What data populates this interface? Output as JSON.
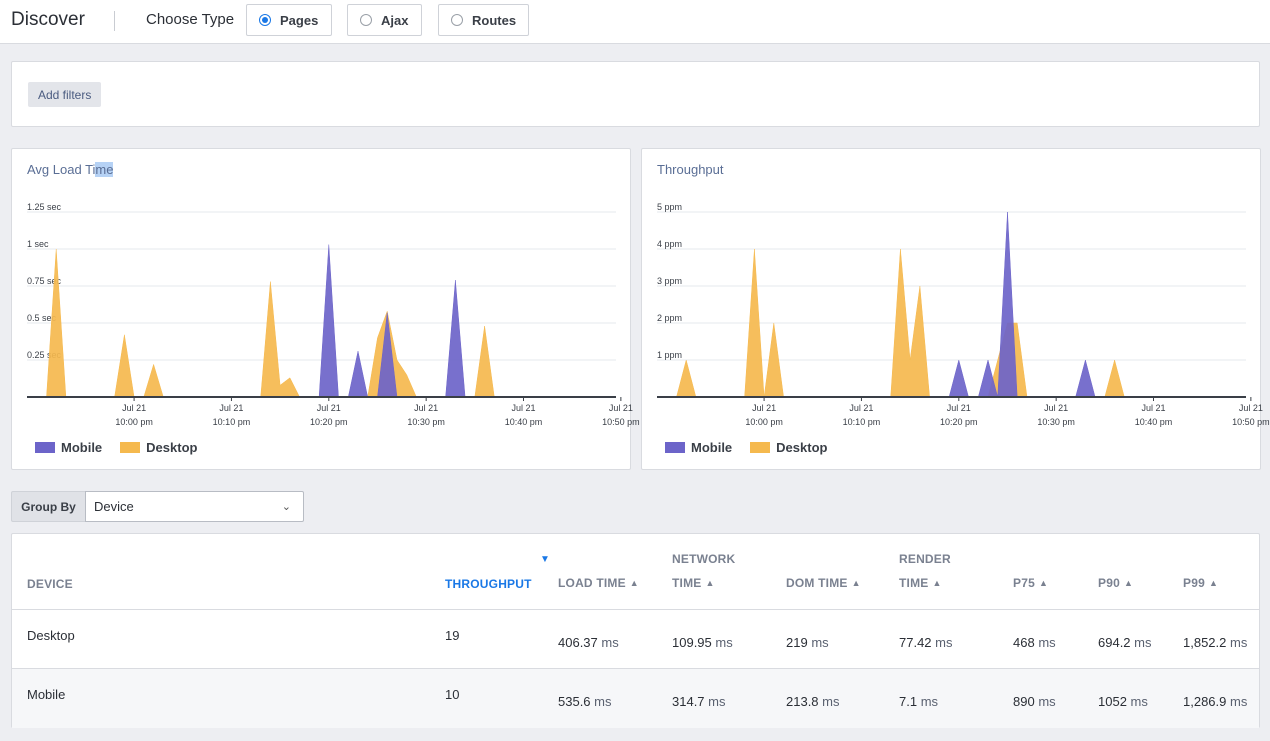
{
  "header": {
    "title": "Discover",
    "choose_type_label": "Choose Type",
    "types": [
      {
        "label": "Pages",
        "selected": true
      },
      {
        "label": "Ajax",
        "selected": false
      },
      {
        "label": "Routes",
        "selected": false
      }
    ]
  },
  "filters": {
    "add_label": "Add filters"
  },
  "colors": {
    "mobile": "#6c64c9",
    "desktop": "#f5b94e",
    "accent": "#1a78e6"
  },
  "charts": {
    "load_time": {
      "title_a": "Avg Load Ti",
      "title_b": "me",
      "y_ticks": [
        "1.25 sec",
        "1 sec",
        "0.75 sec",
        "0.5 sec",
        "0.25 sec"
      ],
      "x_ticks": [
        {
          "date": "Jul 21",
          "time": "10:00 pm"
        },
        {
          "date": "Jul 21",
          "time": "10:10 pm"
        },
        {
          "date": "Jul 21",
          "time": "10:20 pm"
        },
        {
          "date": "Jul 21",
          "time": "10:30 pm"
        },
        {
          "date": "Jul 21",
          "time": "10:40 pm"
        },
        {
          "date": "Jul 21",
          "time": "10:50 pm"
        }
      ],
      "legend": [
        "Mobile",
        "Desktop"
      ]
    },
    "throughput": {
      "title": "Throughput",
      "y_ticks": [
        "5 ppm",
        "4 ppm",
        "3 ppm",
        "2 ppm",
        "1 ppm"
      ],
      "x_ticks": [
        {
          "date": "Jul 21",
          "time": "10:00 pm"
        },
        {
          "date": "Jul 21",
          "time": "10:10 pm"
        },
        {
          "date": "Jul 21",
          "time": "10:20 pm"
        },
        {
          "date": "Jul 21",
          "time": "10:30 pm"
        },
        {
          "date": "Jul 21",
          "time": "10:40 pm"
        },
        {
          "date": "Jul 21",
          "time": "10:50 pm"
        }
      ],
      "legend": [
        "Mobile",
        "Desktop"
      ]
    }
  },
  "chart_data": [
    {
      "type": "area",
      "title": "Avg Load Time",
      "x_unit": "minutes after 9:50 pm",
      "xlim": [
        -1,
        59.5
      ],
      "ylim": [
        0,
        1.25
      ],
      "y_unit": "sec",
      "series": [
        {
          "name": "Desktop",
          "points": [
            [
              1,
              0
            ],
            [
              2,
              1.0
            ],
            [
              3,
              0
            ],
            [
              8,
              0
            ],
            [
              9,
              0.42
            ],
            [
              10,
              0
            ],
            [
              11,
              0
            ],
            [
              12,
              0.22
            ],
            [
              13,
              0
            ],
            [
              23,
              0
            ],
            [
              24,
              0.78
            ],
            [
              25,
              0.08
            ],
            [
              26,
              0.13
            ],
            [
              27,
              0
            ],
            [
              34,
              0
            ],
            [
              35,
              0.4
            ],
            [
              36,
              0.58
            ],
            [
              37,
              0.25
            ],
            [
              38,
              0.15
            ],
            [
              39,
              0
            ],
            [
              45,
              0
            ],
            [
              46,
              0.48
            ],
            [
              47,
              0
            ]
          ]
        },
        {
          "name": "Mobile",
          "points": [
            [
              29,
              0
            ],
            [
              30,
              1.03
            ],
            [
              31,
              0
            ],
            [
              32,
              0
            ],
            [
              33,
              0.31
            ],
            [
              34,
              0
            ],
            [
              35,
              0
            ],
            [
              36,
              0.57
            ],
            [
              37,
              0
            ],
            [
              42,
              0
            ],
            [
              43,
              0.79
            ],
            [
              44,
              0
            ]
          ]
        }
      ]
    },
    {
      "type": "area",
      "title": "Throughput",
      "x_unit": "minutes after 9:50 pm",
      "xlim": [
        -1,
        59.5
      ],
      "ylim": [
        0,
        5
      ],
      "y_unit": "ppm",
      "series": [
        {
          "name": "Desktop",
          "points": [
            [
              1,
              0
            ],
            [
              2,
              1
            ],
            [
              3,
              0
            ],
            [
              8,
              0
            ],
            [
              9,
              4
            ],
            [
              10,
              0
            ],
            [
              11,
              2
            ],
            [
              12,
              0
            ],
            [
              23,
              0
            ],
            [
              24,
              4
            ],
            [
              25,
              1
            ],
            [
              26,
              3
            ],
            [
              27,
              0
            ],
            [
              33,
              0
            ],
            [
              34,
              1
            ],
            [
              35,
              2
            ],
            [
              36,
              2
            ],
            [
              37,
              0
            ],
            [
              45,
              0
            ],
            [
              46,
              1
            ],
            [
              47,
              0
            ]
          ]
        },
        {
          "name": "Mobile",
          "points": [
            [
              29,
              0
            ],
            [
              30,
              1
            ],
            [
              31,
              0
            ],
            [
              32,
              0
            ],
            [
              33,
              1
            ],
            [
              34,
              0
            ],
            [
              34,
              0
            ],
            [
              35,
              5
            ],
            [
              36,
              0
            ],
            [
              42,
              0
            ],
            [
              43,
              1
            ],
            [
              44,
              0
            ]
          ]
        }
      ]
    }
  ],
  "groupby": {
    "label": "Group By",
    "value": "Device"
  },
  "table": {
    "columns": [
      {
        "l1": "",
        "l2": "DEVICE"
      },
      {
        "l1": "",
        "l2": "THROUGHPUT"
      },
      {
        "l1": "",
        "l2": "LOAD TIME"
      },
      {
        "l1": "NETWORK",
        "l2": "TIME"
      },
      {
        "l1": "",
        "l2": "DOM TIME"
      },
      {
        "l1": "RENDER",
        "l2": "TIME"
      },
      {
        "l1": "",
        "l2": "P75"
      },
      {
        "l1": "",
        "l2": "P90"
      },
      {
        "l1": "",
        "l2": "P99"
      }
    ],
    "unit": "ms",
    "rows": [
      {
        "device": "Desktop",
        "throughput": "19",
        "load": "406.37",
        "network": "109.95",
        "dom": "219",
        "render": "77.42",
        "p75": "468",
        "p90": "694.2",
        "p99": "1,852.2"
      },
      {
        "device": "Mobile",
        "throughput": "10",
        "load": "535.6",
        "network": "314.7",
        "dom": "213.8",
        "render": "7.1",
        "p75": "890",
        "p90": "1052",
        "p99": "1,286.9"
      }
    ]
  }
}
